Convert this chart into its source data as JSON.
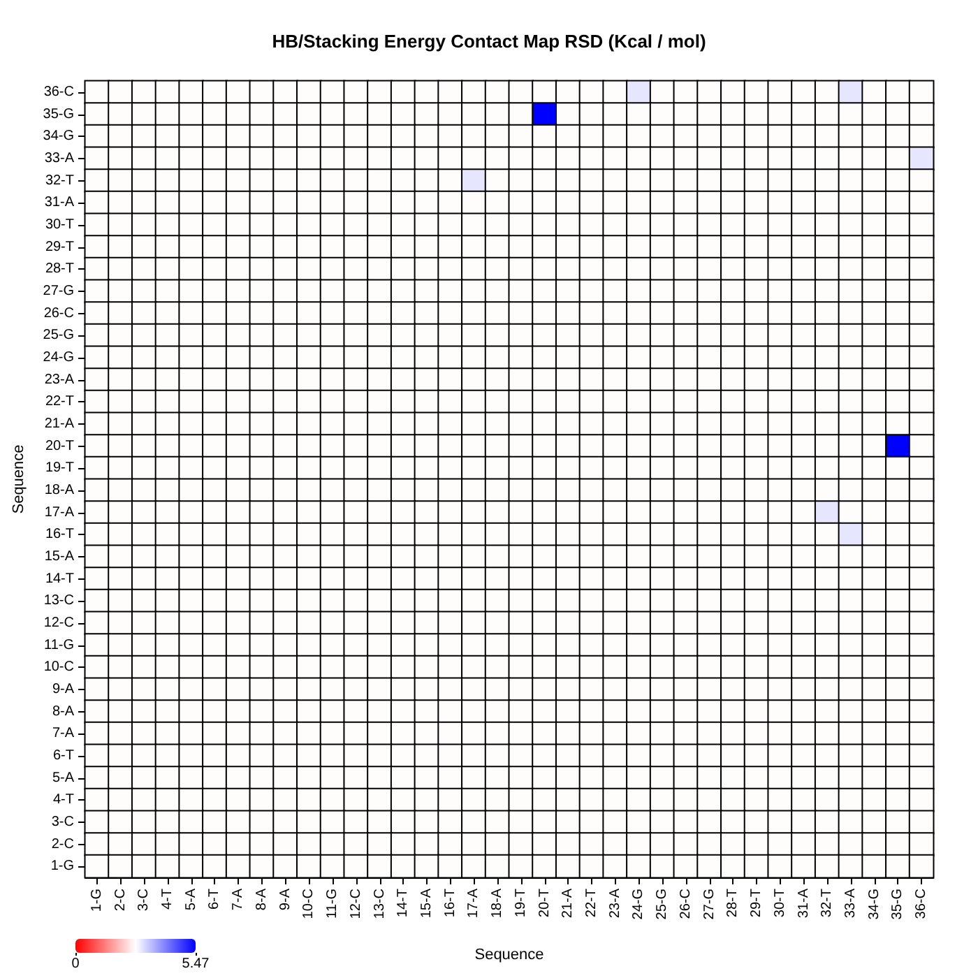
{
  "chart_data": {
    "type": "heatmap",
    "title": "HB/Stacking Energy Contact Map RSD (Kcal / mol)",
    "xlabel": "Sequence",
    "ylabel": "Sequence",
    "categories": [
      "1-G",
      "2-C",
      "3-C",
      "4-T",
      "5-A",
      "6-T",
      "7-A",
      "8-A",
      "9-A",
      "10-C",
      "11-G",
      "12-C",
      "13-C",
      "14-T",
      "15-A",
      "16-T",
      "17-A",
      "18-A",
      "19-T",
      "20-T",
      "21-A",
      "22-T",
      "23-A",
      "24-G",
      "25-G",
      "26-C",
      "27-G",
      "28-T",
      "29-T",
      "30-T",
      "31-A",
      "32-T",
      "33-A",
      "34-G",
      "35-G",
      "36-C"
    ],
    "y_categories": [
      "36-C",
      "35-G",
      "34-G",
      "33-A",
      "32-T",
      "31-A",
      "30-T",
      "29-T",
      "28-T",
      "27-G",
      "26-C",
      "25-G",
      "24-G",
      "23-A",
      "22-T",
      "21-A",
      "20-T",
      "19-T",
      "18-A",
      "17-A",
      "16-T",
      "15-A",
      "14-T",
      "13-C",
      "12-C",
      "11-G",
      "10-C",
      "9-A",
      "8-A",
      "7-A",
      "6-T",
      "5-A",
      "4-T",
      "3-C",
      "2-C",
      "1-G"
    ],
    "cells": [
      [
        2.7,
        2.7,
        2.7,
        2.7,
        2.7,
        2.7,
        2.7,
        2.7,
        2.7,
        2.7,
        2.7,
        2.7,
        2.7,
        2.7,
        2.7,
        2.7,
        2.7,
        2.7,
        2.7,
        2.7,
        2.7,
        2.7,
        2.7,
        3.0,
        2.7,
        2.7,
        2.7,
        2.7,
        2.7,
        2.7,
        2.7,
        2.7,
        3.0,
        2.7,
        2.7,
        2.7
      ],
      [
        2.7,
        2.7,
        2.7,
        2.7,
        2.7,
        2.7,
        2.7,
        2.7,
        2.7,
        2.7,
        2.7,
        2.7,
        2.7,
        2.7,
        2.7,
        2.7,
        2.7,
        2.7,
        2.7,
        5.47,
        2.7,
        2.7,
        2.7,
        2.7,
        2.7,
        2.7,
        2.7,
        2.7,
        2.7,
        2.7,
        2.7,
        2.7,
        2.7,
        2.7,
        2.7,
        2.7
      ],
      [
        2.7,
        2.7,
        2.7,
        2.7,
        2.7,
        2.7,
        2.7,
        2.7,
        2.7,
        2.7,
        2.7,
        2.7,
        2.7,
        2.7,
        2.7,
        2.7,
        2.7,
        2.7,
        2.7,
        2.7,
        2.7,
        2.7,
        2.7,
        2.7,
        2.7,
        2.7,
        2.7,
        2.7,
        2.7,
        2.7,
        2.7,
        2.7,
        2.7,
        2.7,
        2.7,
        2.7
      ],
      [
        2.7,
        2.7,
        2.7,
        2.7,
        2.7,
        2.7,
        2.7,
        2.7,
        2.7,
        2.7,
        2.7,
        2.7,
        2.7,
        2.7,
        2.7,
        2.7,
        2.7,
        2.7,
        2.7,
        2.7,
        2.7,
        2.7,
        2.7,
        2.7,
        2.7,
        2.7,
        2.7,
        2.7,
        2.7,
        2.7,
        2.7,
        2.7,
        2.7,
        2.7,
        2.7,
        3.0
      ],
      [
        2.7,
        2.7,
        2.7,
        2.7,
        2.7,
        2.7,
        2.7,
        2.7,
        2.7,
        2.7,
        2.7,
        2.7,
        2.7,
        2.7,
        2.7,
        2.7,
        3.0,
        2.7,
        2.7,
        2.7,
        2.7,
        2.7,
        2.7,
        2.7,
        2.7,
        2.7,
        2.7,
        2.7,
        2.7,
        2.7,
        2.7,
        2.7,
        2.7,
        2.7,
        2.7,
        2.7
      ],
      [
        2.7,
        2.7,
        2.7,
        2.7,
        2.7,
        2.7,
        2.7,
        2.7,
        2.7,
        2.7,
        2.7,
        2.7,
        2.7,
        2.7,
        2.7,
        2.7,
        2.7,
        2.7,
        2.7,
        2.7,
        2.7,
        2.7,
        2.7,
        2.7,
        2.7,
        2.7,
        2.7,
        2.7,
        2.7,
        2.7,
        2.7,
        2.7,
        2.7,
        2.7,
        2.7,
        2.7
      ],
      [
        2.7,
        2.7,
        2.7,
        2.7,
        2.7,
        2.7,
        2.7,
        2.7,
        2.7,
        2.7,
        2.7,
        2.7,
        2.7,
        2.7,
        2.7,
        2.7,
        2.7,
        2.7,
        2.7,
        2.7,
        2.7,
        2.7,
        2.7,
        2.7,
        2.7,
        2.7,
        2.7,
        2.7,
        2.7,
        2.7,
        2.7,
        2.7,
        2.7,
        2.7,
        2.7,
        2.7
      ],
      [
        2.7,
        2.7,
        2.7,
        2.7,
        2.7,
        2.7,
        2.7,
        2.7,
        2.7,
        2.7,
        2.7,
        2.7,
        2.7,
        2.7,
        2.7,
        2.7,
        2.7,
        2.7,
        2.7,
        2.7,
        2.7,
        2.7,
        2.7,
        2.7,
        2.7,
        2.7,
        2.7,
        2.7,
        2.7,
        2.7,
        2.7,
        2.7,
        2.7,
        2.7,
        2.7,
        2.7
      ],
      [
        2.7,
        2.7,
        2.7,
        2.7,
        2.7,
        2.7,
        2.7,
        2.7,
        2.7,
        2.7,
        2.7,
        2.7,
        2.7,
        2.7,
        2.7,
        2.7,
        2.7,
        2.7,
        2.7,
        2.7,
        2.7,
        2.7,
        2.7,
        2.7,
        2.7,
        2.7,
        2.7,
        2.7,
        2.7,
        2.7,
        2.7,
        2.7,
        2.7,
        2.7,
        2.7,
        2.7
      ],
      [
        2.7,
        2.7,
        2.7,
        2.7,
        2.7,
        2.7,
        2.7,
        2.7,
        2.7,
        2.7,
        2.7,
        2.7,
        2.7,
        2.7,
        2.7,
        2.7,
        2.7,
        2.7,
        2.7,
        2.7,
        2.7,
        2.7,
        2.7,
        2.7,
        2.7,
        2.7,
        2.7,
        2.7,
        2.7,
        2.7,
        2.7,
        2.7,
        2.7,
        2.7,
        2.7,
        2.7
      ],
      [
        2.7,
        2.7,
        2.7,
        2.7,
        2.7,
        2.7,
        2.7,
        2.7,
        2.7,
        2.7,
        2.7,
        2.7,
        2.7,
        2.7,
        2.7,
        2.7,
        2.7,
        2.7,
        2.7,
        2.7,
        2.7,
        2.7,
        2.7,
        2.7,
        2.7,
        2.7,
        2.7,
        2.7,
        2.7,
        2.7,
        2.7,
        2.7,
        2.7,
        2.7,
        2.7,
        2.7
      ],
      [
        2.7,
        2.7,
        2.7,
        2.7,
        2.7,
        2.7,
        2.7,
        2.7,
        2.7,
        2.7,
        2.7,
        2.7,
        2.7,
        2.7,
        2.7,
        2.7,
        2.7,
        2.7,
        2.7,
        2.7,
        2.7,
        2.7,
        2.7,
        2.7,
        2.7,
        2.7,
        2.7,
        2.7,
        2.7,
        2.7,
        2.7,
        2.7,
        2.7,
        2.7,
        2.7,
        2.7
      ],
      [
        2.7,
        2.7,
        2.7,
        2.7,
        2.7,
        2.7,
        2.7,
        2.7,
        2.7,
        2.7,
        2.7,
        2.7,
        2.7,
        2.7,
        2.7,
        2.7,
        2.7,
        2.7,
        2.7,
        2.7,
        2.7,
        2.7,
        2.7,
        2.7,
        2.7,
        2.7,
        2.7,
        2.7,
        2.7,
        2.7,
        2.7,
        2.7,
        2.7,
        2.7,
        2.7,
        2.7
      ],
      [
        2.7,
        2.7,
        2.7,
        2.7,
        2.7,
        2.7,
        2.7,
        2.7,
        2.7,
        2.7,
        2.7,
        2.7,
        2.7,
        2.7,
        2.7,
        2.7,
        2.7,
        2.7,
        2.7,
        2.7,
        2.7,
        2.7,
        2.7,
        2.7,
        2.7,
        2.7,
        2.7,
        2.7,
        2.7,
        2.7,
        2.7,
        2.7,
        2.7,
        2.7,
        2.7,
        2.7
      ],
      [
        2.7,
        2.7,
        2.7,
        2.7,
        2.7,
        2.7,
        2.7,
        2.7,
        2.7,
        2.7,
        2.7,
        2.7,
        2.7,
        2.7,
        2.7,
        2.7,
        2.7,
        2.7,
        2.7,
        2.7,
        2.7,
        2.7,
        2.7,
        2.7,
        2.7,
        2.7,
        2.7,
        2.7,
        2.7,
        2.7,
        2.7,
        2.7,
        2.7,
        2.7,
        2.7,
        2.7
      ],
      [
        2.7,
        2.7,
        2.7,
        2.7,
        2.7,
        2.7,
        2.7,
        2.7,
        2.7,
        2.7,
        2.7,
        2.7,
        2.7,
        2.7,
        2.7,
        2.7,
        2.7,
        2.7,
        2.7,
        2.7,
        2.7,
        2.7,
        2.7,
        2.7,
        2.7,
        2.7,
        2.7,
        2.7,
        2.7,
        2.7,
        2.7,
        2.7,
        2.7,
        2.7,
        2.7,
        2.7
      ],
      [
        2.7,
        2.7,
        2.7,
        2.7,
        2.7,
        2.7,
        2.7,
        2.7,
        2.7,
        2.7,
        2.7,
        2.7,
        2.7,
        2.7,
        2.7,
        2.7,
        2.7,
        2.7,
        2.7,
        2.7,
        2.7,
        2.7,
        2.7,
        2.7,
        2.7,
        2.7,
        2.7,
        2.7,
        2.7,
        2.7,
        2.7,
        2.7,
        2.7,
        2.7,
        5.47,
        2.7
      ],
      [
        2.7,
        2.7,
        2.7,
        2.7,
        2.7,
        2.7,
        2.7,
        2.7,
        2.7,
        2.7,
        2.7,
        2.7,
        2.7,
        2.7,
        2.7,
        2.7,
        2.7,
        2.7,
        2.7,
        2.7,
        2.7,
        2.7,
        2.7,
        2.7,
        2.7,
        2.7,
        2.7,
        2.7,
        2.7,
        2.7,
        2.7,
        2.7,
        2.7,
        2.7,
        2.7,
        2.7
      ],
      [
        2.7,
        2.7,
        2.7,
        2.7,
        2.7,
        2.7,
        2.7,
        2.7,
        2.7,
        2.7,
        2.7,
        2.7,
        2.7,
        2.7,
        2.7,
        2.7,
        2.7,
        2.7,
        2.7,
        2.7,
        2.7,
        2.7,
        2.7,
        2.7,
        2.7,
        2.7,
        2.7,
        2.7,
        2.7,
        2.7,
        2.7,
        2.7,
        2.7,
        2.7,
        2.7,
        2.7
      ],
      [
        2.7,
        2.7,
        2.7,
        2.7,
        2.7,
        2.7,
        2.7,
        2.7,
        2.7,
        2.7,
        2.7,
        2.7,
        2.7,
        2.7,
        2.7,
        2.7,
        2.7,
        2.7,
        2.7,
        2.7,
        2.7,
        2.7,
        2.7,
        2.7,
        2.7,
        2.7,
        2.7,
        2.7,
        2.7,
        2.7,
        2.7,
        3.0,
        2.7,
        2.7,
        2.7,
        2.7
      ],
      [
        2.7,
        2.7,
        2.7,
        2.7,
        2.7,
        2.7,
        2.7,
        2.7,
        2.7,
        2.7,
        2.7,
        2.7,
        2.7,
        2.7,
        2.7,
        2.7,
        2.7,
        2.7,
        2.7,
        2.7,
        2.7,
        2.7,
        2.7,
        2.7,
        2.7,
        2.7,
        2.7,
        2.7,
        2.7,
        2.7,
        2.7,
        2.7,
        3.0,
        2.7,
        2.7,
        2.7
      ],
      [
        2.7,
        2.7,
        2.7,
        2.7,
        2.7,
        2.7,
        2.7,
        2.7,
        2.7,
        2.7,
        2.7,
        2.7,
        2.7,
        2.7,
        2.7,
        2.7,
        2.7,
        2.7,
        2.7,
        2.7,
        2.7,
        2.7,
        2.7,
        2.7,
        2.7,
        2.7,
        2.7,
        2.7,
        2.7,
        2.7,
        2.7,
        2.7,
        2.7,
        2.7,
        2.7,
        2.7
      ],
      [
        2.7,
        2.7,
        2.7,
        2.7,
        2.7,
        2.7,
        2.7,
        2.7,
        2.7,
        2.7,
        2.7,
        2.7,
        2.7,
        2.7,
        2.7,
        2.7,
        2.7,
        2.7,
        2.7,
        2.7,
        2.7,
        2.7,
        2.7,
        2.7,
        2.7,
        2.7,
        2.7,
        2.7,
        2.7,
        2.7,
        2.7,
        2.7,
        2.7,
        2.7,
        2.7,
        2.7
      ],
      [
        2.7,
        2.7,
        2.7,
        2.7,
        2.7,
        2.7,
        2.7,
        2.7,
        2.7,
        2.7,
        2.7,
        2.7,
        2.7,
        2.7,
        2.7,
        2.7,
        2.7,
        2.7,
        2.7,
        2.7,
        2.7,
        2.7,
        2.7,
        2.7,
        2.7,
        2.7,
        2.7,
        2.7,
        2.7,
        2.7,
        2.7,
        2.7,
        2.7,
        2.7,
        2.7,
        2.7
      ],
      [
        2.7,
        2.7,
        2.7,
        2.7,
        2.7,
        2.7,
        2.7,
        2.7,
        2.7,
        2.7,
        2.7,
        2.7,
        2.7,
        2.7,
        2.7,
        2.7,
        2.7,
        2.7,
        2.7,
        2.7,
        2.7,
        2.7,
        2.7,
        2.7,
        2.7,
        2.7,
        2.7,
        2.7,
        2.7,
        2.7,
        2.7,
        2.7,
        2.7,
        2.7,
        2.7,
        2.7
      ],
      [
        2.7,
        2.7,
        2.7,
        2.7,
        2.7,
        2.7,
        2.7,
        2.7,
        2.7,
        2.7,
        2.7,
        2.7,
        2.7,
        2.7,
        2.7,
        2.7,
        2.7,
        2.7,
        2.7,
        2.7,
        2.7,
        2.7,
        2.7,
        2.7,
        2.7,
        2.7,
        2.7,
        2.7,
        2.7,
        2.7,
        2.7,
        2.7,
        2.7,
        2.7,
        2.7,
        2.7
      ],
      [
        2.7,
        2.7,
        2.7,
        2.7,
        2.7,
        2.7,
        2.7,
        2.7,
        2.7,
        2.7,
        2.7,
        2.7,
        2.7,
        2.7,
        2.7,
        2.7,
        2.7,
        2.7,
        2.7,
        2.7,
        2.7,
        2.7,
        2.7,
        2.7,
        2.7,
        2.7,
        2.7,
        2.7,
        2.7,
        2.7,
        2.7,
        2.7,
        2.7,
        2.7,
        2.7,
        2.7
      ],
      [
        2.7,
        2.7,
        2.7,
        2.7,
        2.7,
        2.7,
        2.7,
        2.7,
        2.7,
        2.7,
        2.7,
        2.7,
        2.7,
        2.7,
        2.7,
        2.7,
        2.7,
        2.7,
        2.7,
        2.7,
        2.7,
        2.7,
        2.7,
        2.7,
        2.7,
        2.7,
        2.7,
        2.7,
        2.7,
        2.7,
        2.7,
        2.7,
        2.7,
        2.7,
        2.7,
        2.7
      ],
      [
        2.7,
        2.7,
        2.7,
        2.7,
        2.7,
        2.7,
        2.7,
        2.7,
        2.7,
        2.7,
        2.7,
        2.7,
        2.7,
        2.7,
        2.7,
        2.7,
        2.7,
        2.7,
        2.7,
        2.7,
        2.7,
        2.7,
        2.7,
        2.7,
        2.7,
        2.7,
        2.7,
        2.7,
        2.7,
        2.7,
        2.7,
        2.7,
        2.7,
        2.7,
        2.7,
        2.7
      ],
      [
        2.7,
        2.7,
        2.7,
        2.7,
        2.7,
        2.7,
        2.7,
        2.7,
        2.7,
        2.7,
        2.7,
        2.7,
        2.7,
        2.7,
        2.7,
        2.7,
        2.7,
        2.7,
        2.7,
        2.7,
        2.7,
        2.7,
        2.7,
        2.7,
        2.7,
        2.7,
        2.7,
        2.7,
        2.7,
        2.7,
        2.7,
        2.7,
        2.7,
        2.7,
        2.7,
        2.7
      ],
      [
        2.7,
        2.7,
        2.7,
        2.7,
        2.7,
        2.7,
        2.7,
        2.7,
        2.7,
        2.7,
        2.7,
        2.7,
        2.7,
        2.7,
        2.7,
        2.7,
        2.7,
        2.7,
        2.7,
        2.7,
        2.7,
        2.7,
        2.7,
        2.7,
        2.7,
        2.7,
        2.7,
        2.7,
        2.7,
        2.7,
        2.7,
        2.7,
        2.7,
        2.7,
        2.7,
        2.7
      ],
      [
        2.7,
        2.7,
        2.7,
        2.7,
        2.7,
        2.7,
        2.7,
        2.7,
        2.7,
        2.7,
        2.7,
        2.7,
        2.7,
        2.7,
        2.7,
        2.7,
        2.7,
        2.7,
        2.7,
        2.7,
        2.7,
        2.7,
        2.7,
        2.7,
        2.7,
        2.7,
        2.7,
        2.7,
        2.7,
        2.7,
        2.7,
        2.7,
        2.7,
        2.7,
        2.7,
        2.7
      ],
      [
        2.7,
        2.7,
        2.7,
        2.7,
        2.7,
        2.7,
        2.7,
        2.7,
        2.7,
        2.7,
        2.7,
        2.7,
        2.7,
        2.7,
        2.7,
        2.7,
        2.7,
        2.7,
        2.7,
        2.7,
        2.7,
        2.7,
        2.7,
        2.7,
        2.7,
        2.7,
        2.7,
        2.7,
        2.7,
        2.7,
        2.7,
        2.7,
        2.7,
        2.7,
        2.7,
        2.7
      ],
      [
        2.7,
        2.7,
        2.7,
        2.7,
        2.7,
        2.7,
        2.7,
        2.7,
        2.7,
        2.7,
        2.7,
        2.7,
        2.7,
        2.7,
        2.7,
        2.7,
        2.7,
        2.7,
        2.7,
        2.7,
        2.7,
        2.7,
        2.7,
        2.7,
        2.7,
        2.7,
        2.7,
        2.7,
        2.7,
        2.7,
        2.7,
        2.7,
        2.7,
        2.7,
        2.7,
        2.7
      ],
      [
        2.7,
        2.7,
        2.7,
        2.7,
        2.7,
        2.7,
        2.7,
        2.7,
        2.7,
        2.7,
        2.7,
        2.7,
        2.7,
        2.7,
        2.7,
        2.7,
        2.7,
        2.7,
        2.7,
        2.7,
        2.7,
        2.7,
        2.7,
        2.7,
        2.7,
        2.7,
        2.7,
        2.7,
        2.7,
        2.7,
        2.7,
        2.7,
        2.7,
        2.7,
        2.7,
        2.7
      ],
      [
        2.7,
        2.7,
        2.7,
        2.7,
        2.7,
        2.7,
        2.7,
        2.7,
        2.7,
        2.7,
        2.7,
        2.7,
        2.7,
        2.7,
        2.7,
        2.7,
        2.7,
        2.7,
        2.7,
        2.7,
        2.7,
        2.7,
        2.7,
        2.7,
        2.7,
        2.7,
        2.7,
        2.7,
        2.7,
        2.7,
        2.7,
        2.7,
        2.7,
        2.7,
        2.7,
        2.7
      ]
    ],
    "clim": [
      0,
      5.47
    ],
    "cticks": [
      0,
      5.47
    ]
  }
}
